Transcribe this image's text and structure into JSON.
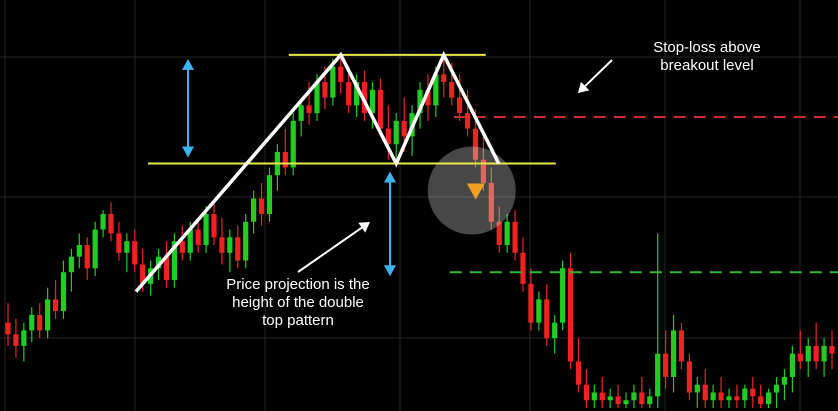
{
  "annotations": {
    "stop_loss_line1": "Stop-loss above",
    "stop_loss_line2": "breakout level",
    "projection_line1": "Price projection is the",
    "projection_line2": "height of the double",
    "projection_line3": "top pattern"
  },
  "colors": {
    "background": "#000000",
    "grid": "#262626",
    "bull_candle": "#22cc22",
    "bear_candle": "#ee2222",
    "pattern_lines": "#e8e84a",
    "zigzag": "#ffffff",
    "measure_arrow": "#3fb3f0",
    "stop_loss_line": "#cc2a2a",
    "target_line": "#2fb82f",
    "entry_marker": "#f0a020",
    "annotation_arrow": "#ffffff"
  },
  "chart_data": {
    "type": "candlestick",
    "pattern": "double top",
    "price_range": [
      0,
      100
    ],
    "resistance_level": 91,
    "neckline_level": 63,
    "stop_loss_level": 75,
    "target_level": 35,
    "peaks": [
      91,
      91
    ],
    "trough": 63,
    "trend_start": 30,
    "candles": [
      {
        "o": 22,
        "h": 27,
        "l": 16,
        "c": 19
      },
      {
        "o": 19,
        "h": 23,
        "l": 13,
        "c": 16
      },
      {
        "o": 16,
        "h": 22,
        "l": 12,
        "c": 20
      },
      {
        "o": 20,
        "h": 26,
        "l": 17,
        "c": 24
      },
      {
        "o": 24,
        "h": 27,
        "l": 18,
        "c": 20
      },
      {
        "o": 20,
        "h": 31,
        "l": 18,
        "c": 28
      },
      {
        "o": 28,
        "h": 33,
        "l": 23,
        "c": 25
      },
      {
        "o": 25,
        "h": 38,
        "l": 23,
        "c": 35
      },
      {
        "o": 35,
        "h": 41,
        "l": 30,
        "c": 39
      },
      {
        "o": 39,
        "h": 45,
        "l": 36,
        "c": 42
      },
      {
        "o": 42,
        "h": 44,
        "l": 33,
        "c": 36
      },
      {
        "o": 36,
        "h": 48,
        "l": 34,
        "c": 46
      },
      {
        "o": 46,
        "h": 51,
        "l": 44,
        "c": 50
      },
      {
        "o": 50,
        "h": 53,
        "l": 43,
        "c": 45
      },
      {
        "o": 45,
        "h": 48,
        "l": 38,
        "c": 40
      },
      {
        "o": 40,
        "h": 45,
        "l": 35,
        "c": 43
      },
      {
        "o": 43,
        "h": 46,
        "l": 35,
        "c": 37
      },
      {
        "o": 37,
        "h": 41,
        "l": 30,
        "c": 32
      },
      {
        "o": 32,
        "h": 38,
        "l": 29,
        "c": 36
      },
      {
        "o": 36,
        "h": 41,
        "l": 33,
        "c": 39
      },
      {
        "o": 39,
        "h": 43,
        "l": 31,
        "c": 33
      },
      {
        "o": 33,
        "h": 45,
        "l": 31,
        "c": 43
      },
      {
        "o": 43,
        "h": 47,
        "l": 38,
        "c": 40
      },
      {
        "o": 40,
        "h": 48,
        "l": 38,
        "c": 46
      },
      {
        "o": 46,
        "h": 48,
        "l": 40,
        "c": 42
      },
      {
        "o": 42,
        "h": 52,
        "l": 40,
        "c": 50
      },
      {
        "o": 50,
        "h": 53,
        "l": 42,
        "c": 44
      },
      {
        "o": 44,
        "h": 49,
        "l": 37,
        "c": 40
      },
      {
        "o": 40,
        "h": 46,
        "l": 35,
        "c": 44
      },
      {
        "o": 44,
        "h": 47,
        "l": 36,
        "c": 38
      },
      {
        "o": 38,
        "h": 50,
        "l": 36,
        "c": 48
      },
      {
        "o": 48,
        "h": 56,
        "l": 45,
        "c": 54
      },
      {
        "o": 54,
        "h": 58,
        "l": 47,
        "c": 50
      },
      {
        "o": 50,
        "h": 62,
        "l": 48,
        "c": 60
      },
      {
        "o": 60,
        "h": 68,
        "l": 56,
        "c": 66
      },
      {
        "o": 66,
        "h": 72,
        "l": 60,
        "c": 62
      },
      {
        "o": 62,
        "h": 76,
        "l": 60,
        "c": 74
      },
      {
        "o": 74,
        "h": 80,
        "l": 70,
        "c": 78
      },
      {
        "o": 78,
        "h": 84,
        "l": 73,
        "c": 76
      },
      {
        "o": 76,
        "h": 86,
        "l": 74,
        "c": 84
      },
      {
        "o": 84,
        "h": 88,
        "l": 77,
        "c": 80
      },
      {
        "o": 80,
        "h": 90,
        "l": 78,
        "c": 88
      },
      {
        "o": 88,
        "h": 91,
        "l": 81,
        "c": 84
      },
      {
        "o": 84,
        "h": 88,
        "l": 76,
        "c": 78
      },
      {
        "o": 78,
        "h": 86,
        "l": 75,
        "c": 84
      },
      {
        "o": 84,
        "h": 87,
        "l": 74,
        "c": 76
      },
      {
        "o": 76,
        "h": 84,
        "l": 72,
        "c": 82
      },
      {
        "o": 82,
        "h": 85,
        "l": 70,
        "c": 72
      },
      {
        "o": 72,
        "h": 78,
        "l": 64,
        "c": 68
      },
      {
        "o": 68,
        "h": 76,
        "l": 63,
        "c": 74
      },
      {
        "o": 74,
        "h": 80,
        "l": 66,
        "c": 70
      },
      {
        "o": 70,
        "h": 78,
        "l": 65,
        "c": 76
      },
      {
        "o": 76,
        "h": 84,
        "l": 72,
        "c": 82
      },
      {
        "o": 82,
        "h": 86,
        "l": 74,
        "c": 78
      },
      {
        "o": 78,
        "h": 88,
        "l": 75,
        "c": 86
      },
      {
        "o": 86,
        "h": 91,
        "l": 80,
        "c": 84
      },
      {
        "o": 84,
        "h": 89,
        "l": 78,
        "c": 80
      },
      {
        "o": 80,
        "h": 86,
        "l": 74,
        "c": 76
      },
      {
        "o": 76,
        "h": 82,
        "l": 70,
        "c": 72
      },
      {
        "o": 72,
        "h": 77,
        "l": 62,
        "c": 64
      },
      {
        "o": 64,
        "h": 70,
        "l": 56,
        "c": 58
      },
      {
        "o": 58,
        "h": 62,
        "l": 46,
        "c": 48
      },
      {
        "o": 48,
        "h": 52,
        "l": 40,
        "c": 42
      },
      {
        "o": 42,
        "h": 50,
        "l": 40,
        "c": 48
      },
      {
        "o": 48,
        "h": 51,
        "l": 38,
        "c": 40
      },
      {
        "o": 40,
        "h": 44,
        "l": 30,
        "c": 32
      },
      {
        "o": 32,
        "h": 36,
        "l": 20,
        "c": 22
      },
      {
        "o": 22,
        "h": 30,
        "l": 20,
        "c": 28
      },
      {
        "o": 28,
        "h": 32,
        "l": 16,
        "c": 18
      },
      {
        "o": 18,
        "h": 24,
        "l": 14,
        "c": 22
      },
      {
        "o": 22,
        "h": 38,
        "l": 20,
        "c": 36
      },
      {
        "o": 36,
        "h": 40,
        "l": 10,
        "c": 12
      },
      {
        "o": 12,
        "h": 18,
        "l": 4,
        "c": 6
      },
      {
        "o": 6,
        "h": 10,
        "l": 0,
        "c": 2
      },
      {
        "o": 2,
        "h": 6,
        "l": 0,
        "c": 4
      },
      {
        "o": 4,
        "h": 8,
        "l": 0,
        "c": 2
      },
      {
        "o": 2,
        "h": 5,
        "l": 0,
        "c": 3
      },
      {
        "o": 3,
        "h": 6,
        "l": 0,
        "c": 1
      },
      {
        "o": 1,
        "h": 4,
        "l": 0,
        "c": 2
      },
      {
        "o": 2,
        "h": 6,
        "l": 0,
        "c": 4
      },
      {
        "o": 4,
        "h": 8,
        "l": 0,
        "c": 1
      },
      {
        "o": 1,
        "h": 5,
        "l": 0,
        "c": 3
      },
      {
        "o": 3,
        "h": 45,
        "l": 0,
        "c": 14
      },
      {
        "o": 14,
        "h": 20,
        "l": 5,
        "c": 8
      },
      {
        "o": 8,
        "h": 24,
        "l": 4,
        "c": 20
      },
      {
        "o": 20,
        "h": 22,
        "l": 10,
        "c": 12
      },
      {
        "o": 12,
        "h": 14,
        "l": 2,
        "c": 4
      },
      {
        "o": 4,
        "h": 8,
        "l": 0,
        "c": 6
      },
      {
        "o": 6,
        "h": 10,
        "l": 0,
        "c": 2
      },
      {
        "o": 2,
        "h": 6,
        "l": 0,
        "c": 4
      },
      {
        "o": 4,
        "h": 8,
        "l": 0,
        "c": 2
      },
      {
        "o": 2,
        "h": 5,
        "l": 0,
        "c": 3
      },
      {
        "o": 3,
        "h": 6,
        "l": 0,
        "c": 2
      },
      {
        "o": 2,
        "h": 6,
        "l": 0,
        "c": 5
      },
      {
        "o": 5,
        "h": 8,
        "l": 0,
        "c": 3
      },
      {
        "o": 3,
        "h": 6,
        "l": 0,
        "c": 1
      },
      {
        "o": 1,
        "h": 5,
        "l": 0,
        "c": 4
      },
      {
        "o": 4,
        "h": 8,
        "l": 0,
        "c": 6
      },
      {
        "o": 6,
        "h": 10,
        "l": 2,
        "c": 8
      },
      {
        "o": 8,
        "h": 16,
        "l": 4,
        "c": 14
      },
      {
        "o": 14,
        "h": 20,
        "l": 10,
        "c": 12
      },
      {
        "o": 12,
        "h": 18,
        "l": 8,
        "c": 16
      },
      {
        "o": 16,
        "h": 22,
        "l": 10,
        "c": 12
      },
      {
        "o": 12,
        "h": 18,
        "l": 8,
        "c": 16
      },
      {
        "o": 16,
        "h": 20,
        "l": 10,
        "c": 14
      }
    ]
  }
}
